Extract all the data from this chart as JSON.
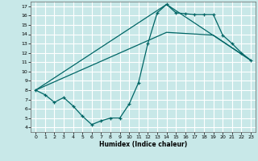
{
  "xlabel": "Humidex (Indice chaleur)",
  "background_color": "#c8e8e8",
  "grid_color": "#ffffff",
  "line_color": "#006666",
  "xlim": [
    -0.5,
    23.5
  ],
  "ylim": [
    3.5,
    17.5
  ],
  "xticks": [
    0,
    1,
    2,
    3,
    4,
    5,
    6,
    7,
    8,
    9,
    10,
    11,
    12,
    13,
    14,
    15,
    16,
    17,
    18,
    19,
    20,
    21,
    22,
    23
  ],
  "yticks": [
    4,
    5,
    6,
    7,
    8,
    9,
    10,
    11,
    12,
    13,
    14,
    15,
    16,
    17
  ],
  "line1_x": [
    0,
    1,
    2,
    3,
    4,
    5,
    6,
    7,
    8,
    9,
    10,
    11,
    12,
    13,
    14,
    15,
    16,
    17,
    18,
    19,
    20,
    21,
    22,
    23
  ],
  "line1_y": [
    8.0,
    7.5,
    6.7,
    7.2,
    6.3,
    5.2,
    4.3,
    4.7,
    5.0,
    5.0,
    6.5,
    8.8,
    13.0,
    16.3,
    17.2,
    16.3,
    16.2,
    16.1,
    16.1,
    16.1,
    13.9,
    13.0,
    12.0,
    11.2
  ],
  "line2_x": [
    0,
    14,
    23
  ],
  "line2_y": [
    8.0,
    17.2,
    11.2
  ],
  "line3_x": [
    0,
    14,
    19,
    23
  ],
  "line3_y": [
    8.0,
    14.2,
    13.9,
    11.2
  ]
}
